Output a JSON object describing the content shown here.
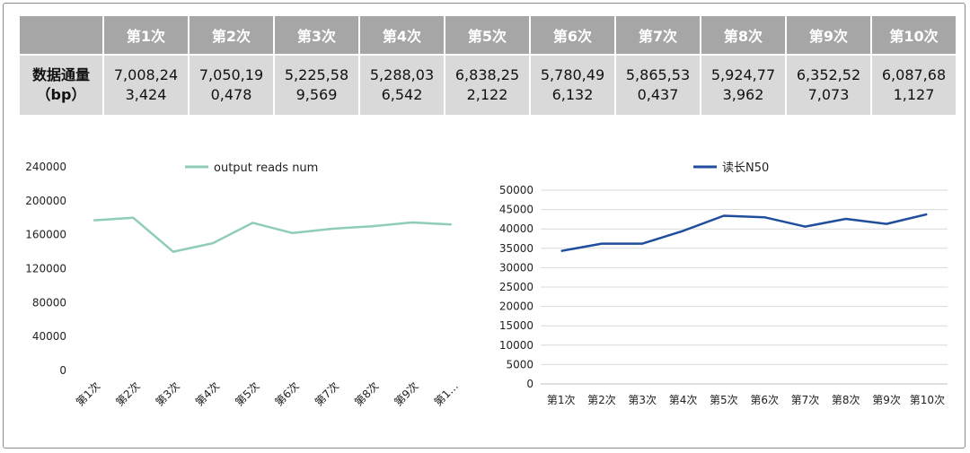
{
  "table": {
    "headers": [
      "",
      "第1次",
      "第2次",
      "第3次",
      "第4次",
      "第5次",
      "第6次",
      "第7次",
      "第8次",
      "第9次",
      "第10次"
    ],
    "row_label_line1": "数据通量",
    "row_label_line2": "（bp）",
    "values": [
      [
        "7,008,24",
        "3,424"
      ],
      [
        "7,050,19",
        "0,478"
      ],
      [
        "5,225,58",
        "9,569"
      ],
      [
        "5,288,03",
        "6,542"
      ],
      [
        "6,838,25",
        "2,122"
      ],
      [
        "5,780,49",
        "6,132"
      ],
      [
        "5,865,53",
        "0,437"
      ],
      [
        "5,924,77",
        "3,962"
      ],
      [
        "6,352,52",
        "7,073"
      ],
      [
        "6,087,68",
        "1,127"
      ]
    ]
  },
  "chart_data": [
    {
      "type": "line",
      "legend": "output reads  num",
      "legend_position": "top",
      "categories": [
        "第1次",
        "第2次",
        "第3次",
        "第4次",
        "第5次",
        "第6次",
        "第7次",
        "第8次",
        "第9次",
        "第1…"
      ],
      "series": [
        {
          "name": "output reads  num",
          "color": "#8fcdb6",
          "values": [
            177000,
            180000,
            140000,
            150000,
            174000,
            162000,
            167000,
            170000,
            174500,
            172000
          ]
        }
      ],
      "y_ticks": [
        "0",
        "40000",
        "80000",
        "120000",
        "160000",
        "200000",
        "240000"
      ],
      "ylim": [
        0,
        240000
      ],
      "grid": false,
      "x_labels_rotated": true
    },
    {
      "type": "line",
      "legend": "读长N50",
      "legend_position": "top",
      "categories": [
        "第1次",
        "第2次",
        "第3次",
        "第4次",
        "第5次",
        "第6次",
        "第7次",
        "第8次",
        "第9次",
        "第10次"
      ],
      "series": [
        {
          "name": "读长N50",
          "color": "#1f4e9c",
          "values": [
            34300,
            36200,
            36200,
            39500,
            43400,
            43000,
            40600,
            42600,
            41300,
            43800
          ]
        }
      ],
      "y_ticks": [
        "0",
        "5000",
        "10000",
        "15000",
        "20000",
        "25000",
        "30000",
        "35000",
        "40000",
        "45000",
        "50000"
      ],
      "ylim": [
        0,
        50000
      ],
      "grid": true,
      "x_labels_rotated": false
    }
  ]
}
